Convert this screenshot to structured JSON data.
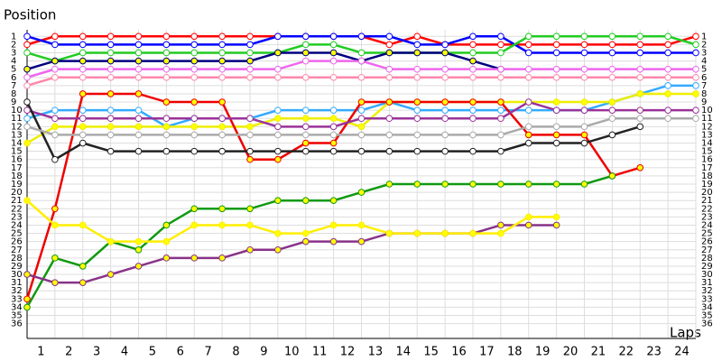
{
  "chart_data": {
    "type": "lap-chart",
    "y_label": "Position",
    "x_label": "Laps",
    "x": [
      0,
      1,
      2,
      3,
      4,
      5,
      6,
      7,
      8,
      9,
      10,
      11,
      12,
      13,
      14,
      15,
      16,
      17,
      18,
      19,
      20,
      21,
      22,
      23,
      24
    ],
    "xticks": [
      1,
      2,
      3,
      4,
      5,
      6,
      7,
      8,
      9,
      10,
      11,
      12,
      13,
      14,
      15,
      16,
      17,
      18,
      19,
      20,
      21,
      22,
      23,
      24
    ],
    "xlim": [
      0,
      24
    ],
    "ylim": [
      37.8,
      0.2
    ],
    "yticks": [
      1,
      2,
      3,
      4,
      5,
      6,
      7,
      8,
      9,
      10,
      11,
      12,
      13,
      14,
      15,
      16,
      17,
      18,
      19,
      20,
      21,
      22,
      23,
      24,
      25,
      26,
      27,
      28,
      29,
      30,
      31,
      32,
      33,
      34,
      35,
      36
    ],
    "grid": true,
    "series": [
      {
        "color": "#ff0000",
        "marker_fill": "#ffffff",
        "values": [
          2,
          1,
          1,
          1,
          1,
          1,
          1,
          1,
          1,
          1,
          1,
          1,
          1,
          2,
          1,
          2,
          2,
          2,
          2,
          2,
          2,
          2,
          2,
          2,
          1
        ]
      },
      {
        "color": "#0000ff",
        "marker_fill": "#ffffff",
        "values": [
          1,
          2,
          2,
          2,
          2,
          2,
          2,
          2,
          2,
          1,
          1,
          1,
          1,
          1,
          2,
          2,
          1,
          1,
          3,
          3,
          3,
          3,
          3,
          3,
          3
        ]
      },
      {
        "color": "#22cc22",
        "marker_fill": "#ffffff",
        "values": [
          3,
          4,
          3,
          3,
          3,
          3,
          3,
          3,
          3,
          3,
          2,
          2,
          3,
          3,
          3,
          3,
          3,
          3,
          1,
          1,
          1,
          1,
          1,
          1,
          2
        ]
      },
      {
        "color": "#000080",
        "marker_fill": "#ffff00",
        "values": [
          5,
          4,
          4,
          4,
          4,
          4,
          4,
          4,
          4,
          3,
          3,
          3,
          4,
          3,
          3,
          3,
          4,
          5,
          null,
          null,
          null,
          null,
          null,
          null,
          null
        ]
      },
      {
        "color": "#ee66ee",
        "marker_fill": "#ffffff",
        "values": [
          6,
          5,
          5,
          5,
          5,
          5,
          5,
          5,
          5,
          5,
          4,
          4,
          4,
          5,
          5,
          5,
          5,
          5,
          5,
          5,
          5,
          5,
          5,
          5,
          5
        ]
      },
      {
        "color": "#ff88aa",
        "marker_fill": "#ffffff",
        "values": [
          7,
          6,
          6,
          6,
          6,
          6,
          6,
          6,
          6,
          6,
          6,
          6,
          6,
          6,
          6,
          6,
          6,
          6,
          6,
          6,
          6,
          6,
          6,
          6,
          6
        ]
      },
      {
        "color": "#33aaff",
        "marker_fill": "#ffffff",
        "values": [
          11,
          10,
          10,
          10,
          10,
          12,
          11,
          11,
          11,
          10,
          10,
          10,
          10,
          9,
          10,
          10,
          10,
          10,
          10,
          10,
          10,
          9,
          8,
          7,
          7
        ]
      },
      {
        "color": "#eeee00",
        "marker_fill": "#ffff00",
        "values": [
          14,
          12,
          12,
          12,
          12,
          12,
          12,
          12,
          12,
          11,
          11,
          11,
          12,
          9,
          9,
          9,
          9,
          9,
          9,
          9,
          9,
          9,
          8,
          8,
          8
        ]
      },
      {
        "color": "#ee0000",
        "marker_fill": "#ffff00",
        "values": [
          33,
          22,
          8,
          8,
          8,
          9,
          9,
          9,
          16,
          16,
          14,
          14,
          9,
          9,
          9,
          9,
          9,
          9,
          13,
          13,
          13,
          18,
          17,
          null,
          null
        ]
      },
      {
        "color": "#993399",
        "marker_fill": "#ffffff",
        "values": [
          10,
          11,
          11,
          11,
          11,
          11,
          11,
          11,
          11,
          12,
          12,
          12,
          11,
          11,
          11,
          11,
          11,
          11,
          9,
          10,
          10,
          10,
          10,
          10,
          10
        ]
      },
      {
        "color": "#222222",
        "marker_fill": "#ffffff",
        "values": [
          9,
          16,
          14,
          15,
          15,
          15,
          15,
          15,
          15,
          15,
          15,
          15,
          15,
          15,
          15,
          15,
          15,
          15,
          14,
          14,
          14,
          13,
          12,
          null,
          null
        ]
      },
      {
        "color": "#aaaaaa",
        "marker_fill": "#ffffff",
        "values": [
          12,
          13,
          13,
          13,
          13,
          13,
          13,
          13,
          13,
          13,
          13,
          13,
          13,
          13,
          13,
          13,
          13,
          13,
          12,
          12,
          12,
          11,
          11,
          11,
          11
        ]
      },
      {
        "color": "#119911",
        "marker_fill": "#ffff00",
        "values": [
          34,
          28,
          29,
          26,
          27,
          24,
          22,
          22,
          22,
          21,
          21,
          21,
          20,
          19,
          19,
          19,
          19,
          19,
          19,
          19,
          19,
          18,
          null,
          null,
          null
        ]
      },
      {
        "color": "#883388",
        "marker_fill": "#ffff00",
        "values": [
          30,
          31,
          31,
          30,
          29,
          28,
          28,
          28,
          27,
          27,
          26,
          26,
          26,
          25,
          25,
          25,
          25,
          24,
          24,
          24,
          null,
          null,
          null,
          null,
          null
        ]
      },
      {
        "color": "#ffee00",
        "marker_fill": "#ffff00",
        "values": [
          21,
          24,
          24,
          26,
          26,
          26,
          24,
          24,
          24,
          25,
          25,
          24,
          24,
          25,
          25,
          25,
          25,
          25,
          23,
          23,
          null,
          null,
          null,
          null,
          null
        ]
      }
    ]
  }
}
